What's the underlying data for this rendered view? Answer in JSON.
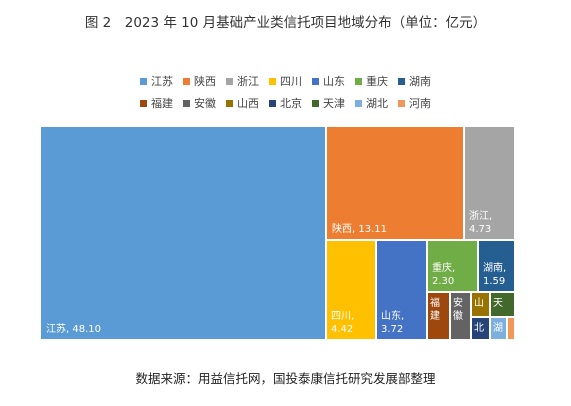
{
  "title": "图 2　2023 年 10 月基础产业类信托项目地域分布（单位：亿元）",
  "source_note": "数据来源：用益信托网，国投泰康信托研究发展部整理",
  "chart_data": {
    "type": "treemap",
    "title": "图 2　2023 年 10 月基础产业类信托项目地域分布（单位：亿元）",
    "unit": "亿元",
    "legend_placement": "top-center",
    "series": [
      {
        "name": "江苏",
        "value": 48.1,
        "color": "#5b9bd5",
        "label": "江苏, 48.10"
      },
      {
        "name": "陕西",
        "value": 13.11,
        "color": "#ed7d31",
        "label": "陕西, 13.11"
      },
      {
        "name": "浙江",
        "value": 4.73,
        "color": "#a5a5a5",
        "label": "浙江, 4.73"
      },
      {
        "name": "四川",
        "value": 4.42,
        "color": "#ffc000",
        "label": "四川, 4.42"
      },
      {
        "name": "山东",
        "value": 3.72,
        "color": "#4472c4",
        "label": "山东, 3.72"
      },
      {
        "name": "重庆",
        "value": 2.3,
        "color": "#70ad47",
        "label": "重庆, 2.30"
      },
      {
        "name": "湖南",
        "value": 1.59,
        "color": "#255e91",
        "label": "湖南, 1.59"
      },
      {
        "name": "福建",
        "value": 0.76,
        "color": "#9e480e",
        "label": "福建..."
      },
      {
        "name": "安徽",
        "value": 0.68,
        "color": "#636363",
        "label": "安徽..."
      },
      {
        "name": "山西",
        "value": 0.43,
        "color": "#997300",
        "label": "山"
      },
      {
        "name": "北京",
        "value": 0.42,
        "color": "#264478",
        "label": "北"
      },
      {
        "name": "天津",
        "value": 0.39,
        "color": "#43682b",
        "label": "天"
      },
      {
        "name": "湖北",
        "value": 0.3,
        "color": "#7cafdd",
        "label": "湖"
      },
      {
        "name": "河南",
        "value": 0.15,
        "color": "#f1975a",
        "label": ""
      }
    ]
  }
}
